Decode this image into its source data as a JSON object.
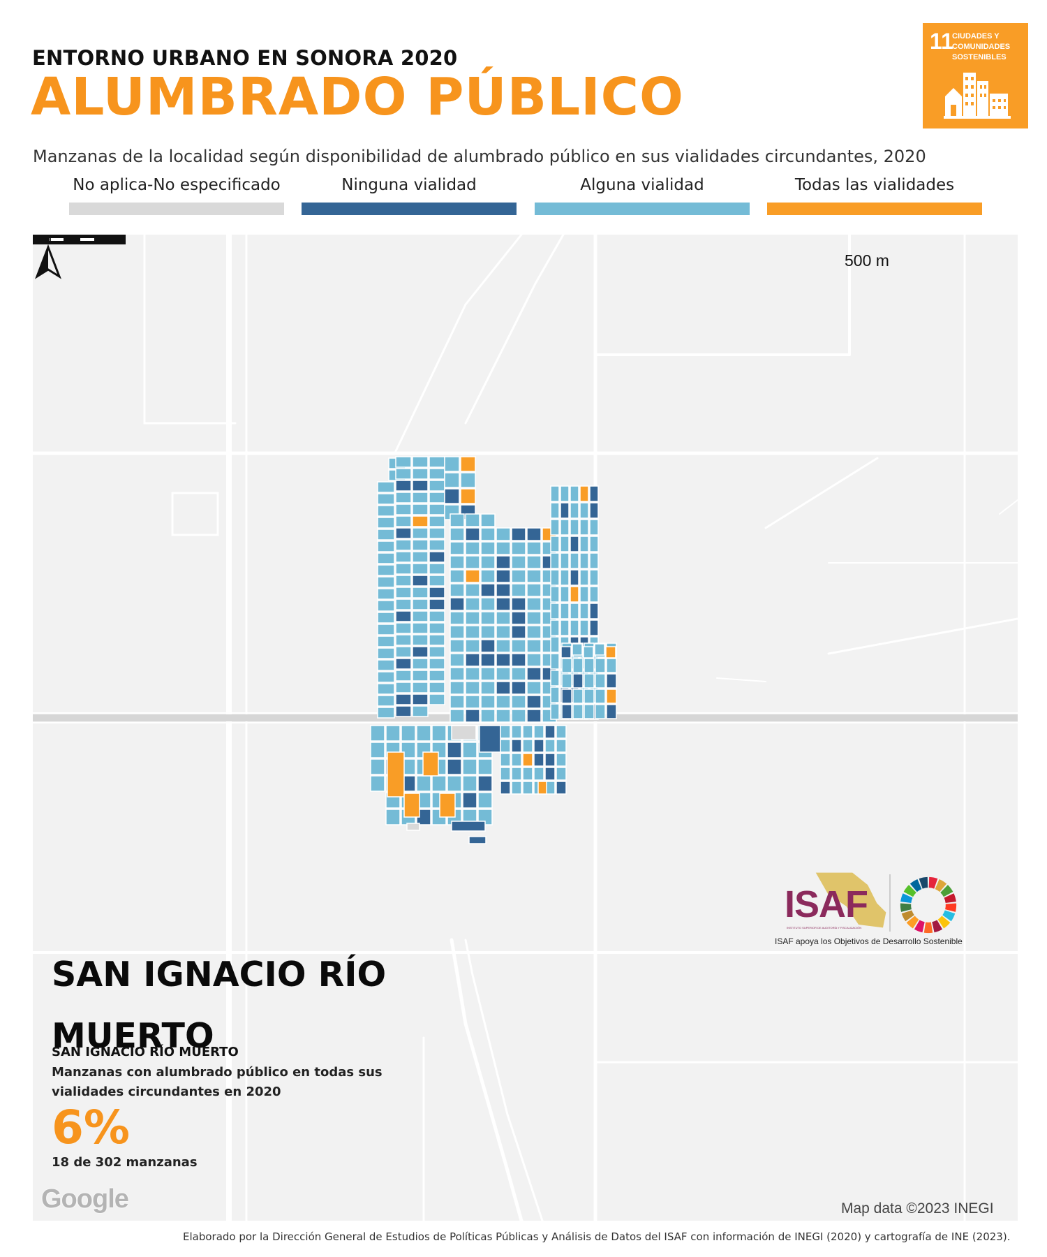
{
  "header": {
    "subtitle": "ENTORNO URBANO EN SONORA 2020",
    "title": "ALUMBRADO PÚBLICO"
  },
  "sdg_badge": {
    "number": "11",
    "text": "CIUDADES Y COMUNIDADES SOSTENIBLES",
    "color": "#f99d26"
  },
  "description": "Manzanas de la localidad según disponibilidad de alumbrado público en sus vialidades circundantes, 2020",
  "legend": [
    {
      "label": "No aplica-No especificado",
      "color": "#d9d9d9"
    },
    {
      "label": "Ninguna vialidad",
      "color": "#346595"
    },
    {
      "label": "Alguna vialidad",
      "color": "#74bbd6"
    },
    {
      "label": "Todas las vialidades",
      "color": "#f99d26"
    }
  ],
  "map": {
    "scale_label": "500 m",
    "north_label": "N",
    "attribution": "Map data ©2023 INEGI",
    "provider_logo": "Google"
  },
  "locality": {
    "name": "SAN IGNACIO RÍO MUERTO",
    "subname": "SAN IGNACIO RÍO MUERTO",
    "indicator_text": "Manzanas con alumbrado público en todas sus vialidades circundantes en 2020",
    "percentage": "6%",
    "count_text": "18 de 302 manzanas"
  },
  "branding": {
    "isaf_name": "ISAF",
    "isaf_full_name": "INSTITUTO SUPERIOR DE AUDITORÍA Y FISCALIZACIÓN",
    "tagline": "ISAF apoya los Objetivos de Desarrollo Sostenible"
  },
  "footer": "Elaborado por la Dirección General de Estudios de Políticas Públicas y Análisis de Datos del ISAF con información de INEGI (2020) y cartografía de INE (2023)."
}
